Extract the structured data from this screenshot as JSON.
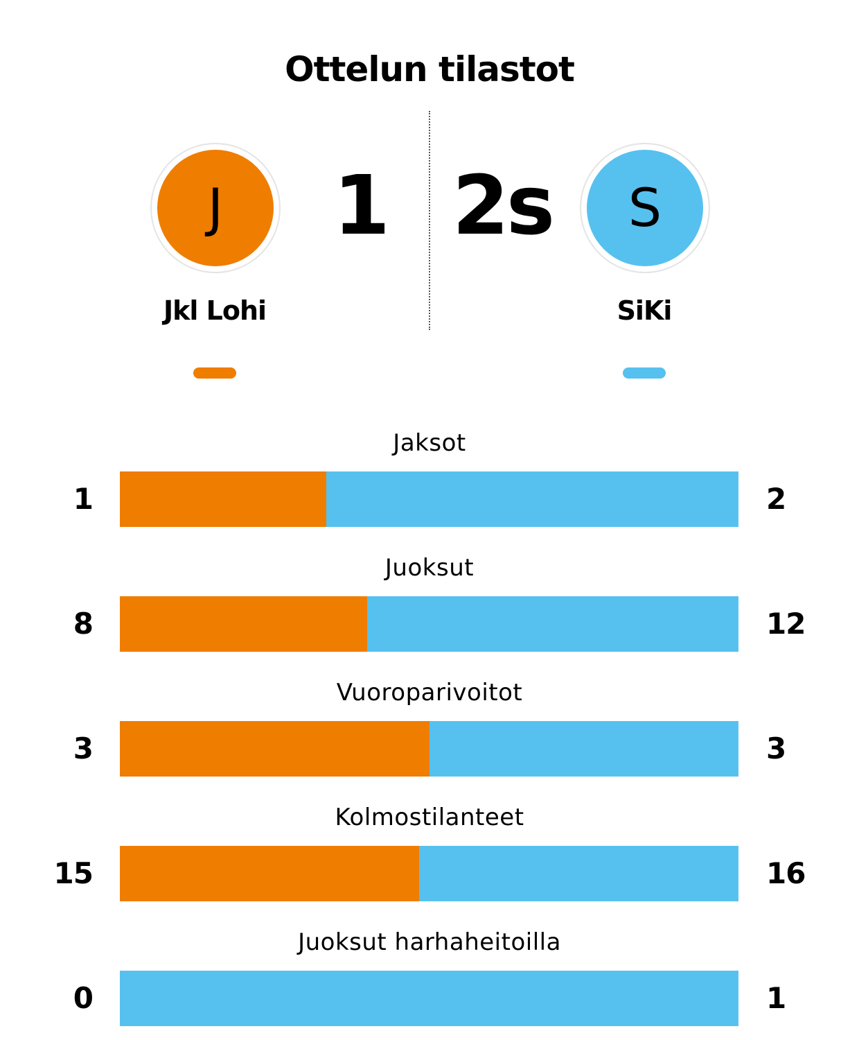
{
  "title": "Ottelun tilastot",
  "colors": {
    "home": "#ef7d00",
    "away": "#56c1ef"
  },
  "home": {
    "name": "Jkl Lohi",
    "logo_letter": "J",
    "score": "1"
  },
  "away": {
    "name": "SiKi",
    "logo_letter": "S",
    "score": "2s"
  },
  "chart_data": {
    "type": "bar",
    "stacked": true,
    "normalized": true,
    "categories": [
      "Jaksot",
      "Juoksut",
      "Vuoroparivoitot",
      "Kolmostilanteet",
      "Juoksut harhaheitoilla"
    ],
    "series": [
      {
        "name": "Jkl Lohi",
        "values": [
          1,
          8,
          3,
          15,
          0
        ]
      },
      {
        "name": "SiKi",
        "values": [
          2,
          12,
          3,
          16,
          1
        ]
      }
    ],
    "legend": "top"
  }
}
